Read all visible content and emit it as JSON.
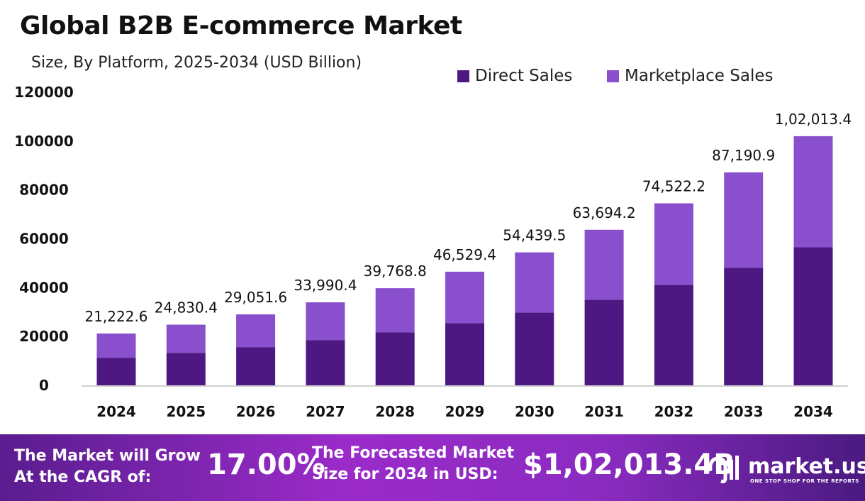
{
  "chart_data": {
    "type": "bar",
    "stacked": true,
    "title": "Global B2B E-commerce Market",
    "subtitle": "Size, By Platform, 2025-2034 (USD Billion)",
    "categories": [
      "2024",
      "2025",
      "2026",
      "2027",
      "2028",
      "2029",
      "2030",
      "2031",
      "2032",
      "2033",
      "2034"
    ],
    "totals": [
      21222.6,
      24830.4,
      29051.6,
      33990.4,
      39768.8,
      46529.4,
      54439.5,
      63694.2,
      74522.2,
      87190.9,
      102013.4
    ],
    "total_labels": [
      "21,222.6",
      "24,830.4",
      "29,051.6",
      "33,990.4",
      "39,768.8",
      "46,529.4",
      "54,439.5",
      "63,694.2",
      "74,522.2",
      "87,190.9",
      "1,02,013.4"
    ],
    "series": [
      {
        "name": "Direct Sales",
        "color": "#4e1883",
        "values": [
          11300,
          13300,
          15650,
          18550,
          21740,
          25500,
          29850,
          35070,
          41160,
          48100,
          56520
        ]
      },
      {
        "name": "Marketplace Sales",
        "color": "#8a4fcd",
        "values": [
          9922.6,
          11530.4,
          13401.6,
          15440.4,
          18028.8,
          21029.4,
          24589.5,
          28624.2,
          33362.2,
          39090.9,
          45493.4
        ]
      }
    ],
    "yticks": [
      "0",
      "20000",
      "40000",
      "60000",
      "80000",
      "100000",
      "120000"
    ],
    "ylim": [
      0,
      120000
    ],
    "grid": false,
    "legend_position": "top-right"
  },
  "footer": {
    "cagr_label_1": "The Market will Grow",
    "cagr_label_2": "At the CAGR of:",
    "cagr_value": "17.00%",
    "forecast_label_1": "The Forecasted Market",
    "forecast_label_2": "Size for 2034 in USD:",
    "forecast_value": "$1,02,013.4B",
    "brand": "market.us",
    "tagline": "ONE STOP SHOP FOR THE REPORTS"
  }
}
